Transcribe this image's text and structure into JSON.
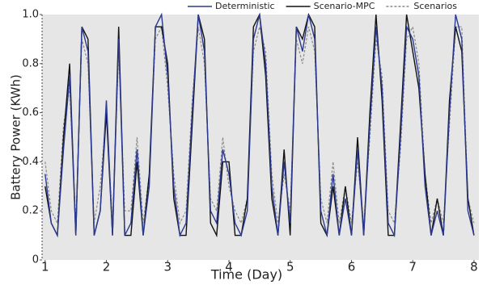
{
  "chart_data": {
    "type": "line",
    "y_label": "Battery Power (KWh)",
    "x_label": "Time (Day)",
    "xlim": [
      0.95,
      8.08
    ],
    "ylim": [
      0,
      1
    ],
    "xticks": [
      1,
      2,
      3,
      4,
      5,
      6,
      7,
      8
    ],
    "yticks": [
      0,
      0.2,
      0.4,
      0.6,
      0.8,
      {
        "value": 1,
        "label": "1.0"
      }
    ],
    "legend_position": "top",
    "x": [
      1.0,
      1.1,
      1.2,
      1.3,
      1.4,
      1.5,
      1.6,
      1.7,
      1.8,
      1.9,
      2.0,
      2.1,
      2.2,
      2.3,
      2.4,
      2.5,
      2.6,
      2.7,
      2.8,
      2.9,
      3.0,
      3.1,
      3.2,
      3.3,
      3.4,
      3.5,
      3.6,
      3.7,
      3.8,
      3.9,
      4.0,
      4.1,
      4.2,
      4.3,
      4.4,
      4.5,
      4.6,
      4.7,
      4.8,
      4.9,
      5.0,
      5.1,
      5.2,
      5.3,
      5.4,
      5.5,
      5.6,
      5.7,
      5.8,
      5.9,
      6.0,
      6.1,
      6.2,
      6.3,
      6.4,
      6.5,
      6.6,
      6.7,
      6.8,
      6.9,
      7.0,
      7.1,
      7.2,
      7.3,
      7.4,
      7.5,
      7.6,
      7.7,
      7.8,
      7.9,
      8.0
    ],
    "series": [
      {
        "name": "Scenarios",
        "color": "#8a8a8a",
        "dashed": true,
        "values": [
          0.4,
          0.2,
          0.15,
          0.55,
          0.7,
          0.15,
          0.9,
          0.8,
          0.15,
          0.3,
          0.6,
          0.15,
          0.85,
          0.2,
          0.2,
          0.5,
          0.15,
          0.35,
          0.9,
          0.95,
          0.7,
          0.35,
          0.15,
          0.2,
          0.65,
          0.95,
          0.8,
          0.25,
          0.2,
          0.5,
          0.3,
          0.2,
          0.15,
          0.25,
          0.85,
          0.95,
          0.85,
          0.35,
          0.15,
          0.35,
          0.2,
          0.9,
          0.8,
          0.95,
          0.85,
          0.25,
          0.15,
          0.4,
          0.15,
          0.3,
          0.15,
          0.4,
          0.15,
          0.5,
          0.9,
          0.75,
          0.2,
          0.15,
          0.45,
          0.9,
          0.95,
          0.8,
          0.35,
          0.15,
          0.25,
          0.15,
          0.55,
          0.95,
          0.95,
          0.25,
          0.15
        ]
      },
      {
        "name": "Scenario-MPC",
        "color": "#111111",
        "dashed": false,
        "values": [
          0.3,
          0.15,
          0.1,
          0.5,
          0.8,
          0.1,
          0.95,
          0.9,
          0.1,
          0.2,
          0.6,
          0.1,
          0.95,
          0.1,
          0.1,
          0.4,
          0.1,
          0.35,
          0.95,
          0.95,
          0.8,
          0.25,
          0.1,
          0.1,
          0.55,
          1.0,
          0.9,
          0.15,
          0.1,
          0.4,
          0.4,
          0.1,
          0.1,
          0.25,
          0.95,
          1.0,
          0.75,
          0.25,
          0.1,
          0.45,
          0.1,
          0.95,
          0.9,
          1.0,
          0.95,
          0.15,
          0.1,
          0.3,
          0.1,
          0.3,
          0.1,
          0.5,
          0.1,
          0.6,
          1.0,
          0.65,
          0.1,
          0.1,
          0.55,
          1.0,
          0.85,
          0.7,
          0.35,
          0.1,
          0.25,
          0.1,
          0.65,
          0.95,
          0.85,
          0.25,
          0.1
        ]
      },
      {
        "name": "Deterministic",
        "color": "#2b3990",
        "dashed": false,
        "values": [
          0.35,
          0.15,
          0.1,
          0.45,
          0.75,
          0.1,
          0.95,
          0.85,
          0.1,
          0.2,
          0.65,
          0.1,
          0.9,
          0.1,
          0.15,
          0.45,
          0.1,
          0.3,
          0.95,
          1.0,
          0.75,
          0.3,
          0.1,
          0.15,
          0.6,
          1.0,
          0.85,
          0.2,
          0.15,
          0.45,
          0.35,
          0.15,
          0.1,
          0.2,
          0.9,
          1.0,
          0.8,
          0.3,
          0.1,
          0.4,
          0.15,
          0.95,
          0.85,
          1.0,
          0.9,
          0.2,
          0.1,
          0.35,
          0.1,
          0.25,
          0.1,
          0.45,
          0.1,
          0.55,
          0.95,
          0.7,
          0.15,
          0.1,
          0.5,
          0.95,
          0.9,
          0.75,
          0.3,
          0.1,
          0.2,
          0.1,
          0.6,
          1.0,
          0.9,
          0.2,
          0.1
        ]
      }
    ]
  }
}
